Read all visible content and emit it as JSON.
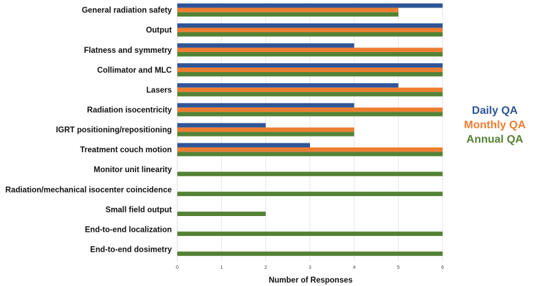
{
  "chart_data": {
    "type": "bar",
    "orientation": "horizontal",
    "categories": [
      "General radiation safety",
      "Output",
      "Flatness and symmetry",
      "Collimator and MLC",
      "Lasers",
      "Radiation isocentricity",
      "IGRT positioning/repositioning",
      "Treatment couch motion",
      "Monitor unit linearity",
      "Radiation/mechanical isocenter coincidence",
      "Small field output",
      "End-to-end localization",
      "End-to-end dosimetry"
    ],
    "series": [
      {
        "name": "Daily QA",
        "color": "#2f5597",
        "values": [
          6,
          6,
          4,
          6,
          5,
          4,
          2,
          3,
          0,
          0,
          0,
          0,
          0
        ]
      },
      {
        "name": "Monthly QA",
        "color": "#ed7d31",
        "values": [
          5,
          6,
          6,
          6,
          6,
          6,
          4,
          6,
          0,
          0,
          0,
          0,
          0
        ]
      },
      {
        "name": "Annual QA",
        "color": "#548235",
        "values": [
          5,
          6,
          6,
          6,
          6,
          6,
          4,
          6,
          6,
          6,
          2,
          6,
          6
        ]
      }
    ],
    "xlabel": "Number of Responses",
    "ylabel": "",
    "xlim": [
      0,
      6
    ],
    "xticks": [
      "0",
      "1",
      "2",
      "3",
      "4",
      "5",
      "6"
    ],
    "grid": "vertical",
    "legend_position": "right"
  }
}
